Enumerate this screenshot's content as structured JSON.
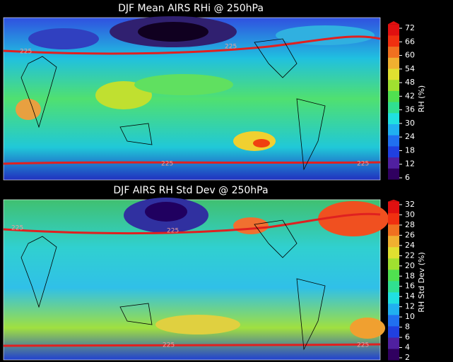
{
  "panels": [
    {
      "title": "DJF Mean AIRS RHi @ 250hPa",
      "colorbar": {
        "label": "RH (%)",
        "ticks": [
          6,
          12,
          18,
          24,
          30,
          36,
          42,
          48,
          54,
          60,
          66,
          72
        ]
      },
      "contour_labels": [
        "225",
        "225",
        "225",
        "225"
      ]
    },
    {
      "title": "DJF AIRS RH Std Dev @ 250hPa",
      "colorbar": {
        "label": "RH Std Dev (%)",
        "ticks": [
          2,
          4,
          6,
          8,
          10,
          12,
          14,
          16,
          18,
          20,
          22,
          24,
          26,
          28,
          30,
          32
        ]
      },
      "contour_labels": [
        "225",
        "225",
        "225",
        "225"
      ]
    }
  ]
}
